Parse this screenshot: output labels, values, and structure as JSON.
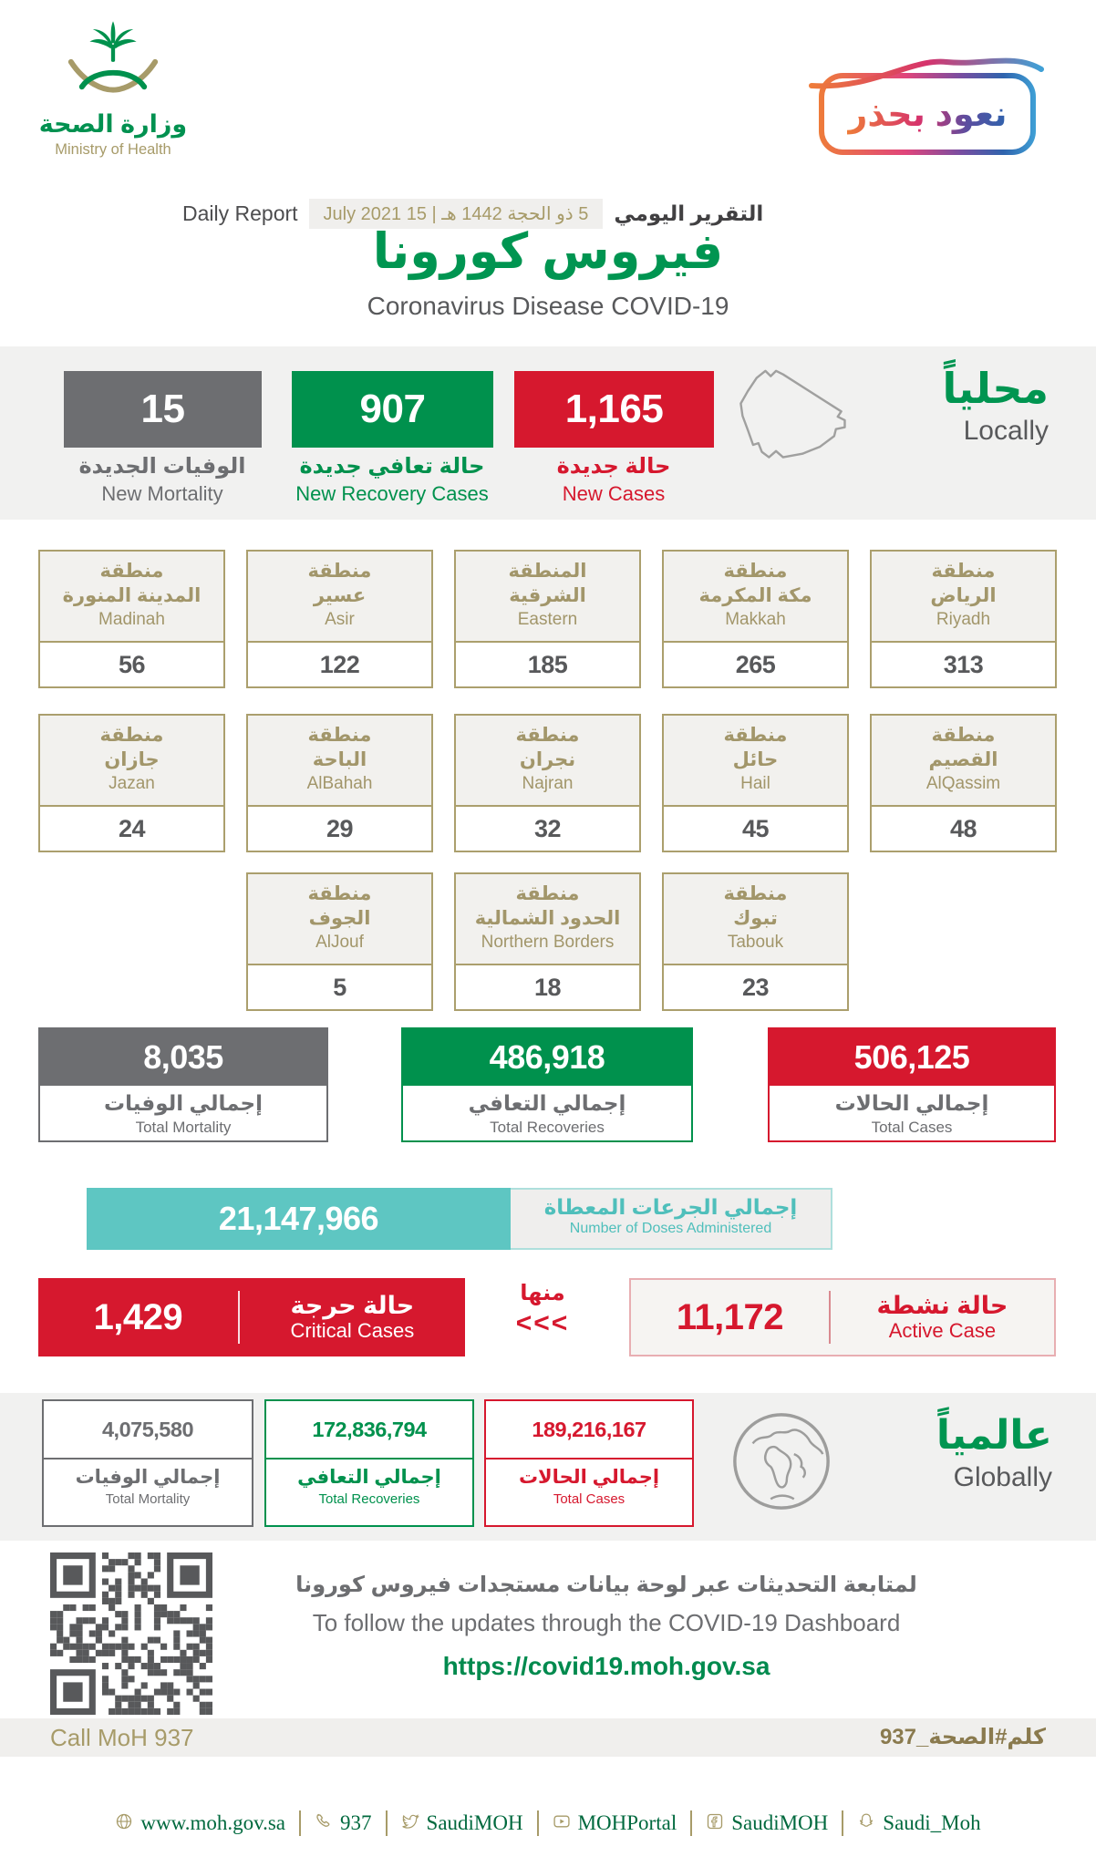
{
  "colors": {
    "green": "#00914d",
    "red": "#d6182e",
    "gray": "#6d6e71",
    "gold": "#a79b69",
    "teal": "#5ec6c2"
  },
  "header": {
    "logo_ar": "وزارة الصحة",
    "logo_en": "Ministry of Health",
    "badge": "نعود بحذر",
    "report_en": "Daily Report",
    "report_date": "5 ذو الحجة 1442 هـ | 15 July 2021",
    "report_ar": "التقرير اليومي",
    "title_ar": "فيروس كورونا",
    "title_en": "Coronavirus Disease COVID-19"
  },
  "local": {
    "heading_ar": "محلياً",
    "heading_en": "Locally",
    "new_mortality": {
      "value": "15",
      "label_ar": "الوفيات الجديدة",
      "label_en": "New Mortality"
    },
    "new_recoveries": {
      "value": "907",
      "label_ar": "حالة تعافي جديدة",
      "label_en": "New Recovery Cases"
    },
    "new_cases": {
      "value": "1,165",
      "label_ar": "حالة جديدة",
      "label_en": "New Cases"
    },
    "regions": [
      {
        "ar1": "منطقة",
        "ar2": "المدينة المنورة",
        "en": "Madinah",
        "value": "56"
      },
      {
        "ar1": "منطقة",
        "ar2": "عسير",
        "en": "Asir",
        "value": "122"
      },
      {
        "ar1": "المنطقة",
        "ar2": "الشرقية",
        "en": "Eastern",
        "value": "185"
      },
      {
        "ar1": "منطقة",
        "ar2": "مكة المكرمة",
        "en": "Makkah",
        "value": "265"
      },
      {
        "ar1": "منطقة",
        "ar2": "الرياض",
        "en": "Riyadh",
        "value": "313"
      },
      {
        "ar1": "منطقة",
        "ar2": "جازان",
        "en": "Jazan",
        "value": "24"
      },
      {
        "ar1": "منطقة",
        "ar2": "الباحة",
        "en": "AlBahah",
        "value": "29"
      },
      {
        "ar1": "منطقة",
        "ar2": "نجران",
        "en": "Najran",
        "value": "32"
      },
      {
        "ar1": "منطقة",
        "ar2": "حائل",
        "en": "Hail",
        "value": "45"
      },
      {
        "ar1": "منطقة",
        "ar2": "القصيم",
        "en": "AlQassim",
        "value": "48"
      },
      {
        "ar1": "منطقة",
        "ar2": "الجوف",
        "en": "AlJouf",
        "value": "5"
      },
      {
        "ar1": "منطقة",
        "ar2": "الحدود الشمالية",
        "en": "Northern Borders",
        "value": "18"
      },
      {
        "ar1": "منطقة",
        "ar2": "تبوك",
        "en": "Tabouk",
        "value": "23"
      }
    ],
    "total_mortality": {
      "value": "8,035",
      "label_ar": "إجمالي الوفيات",
      "label_en": "Total Mortality"
    },
    "total_recoveries": {
      "value": "486,918",
      "label_ar": "إجمالي التعافي",
      "label_en": "Total Recoveries"
    },
    "total_cases": {
      "value": "506,125",
      "label_ar": "إجمالي الحالات",
      "label_en": "Total Cases"
    },
    "doses": {
      "value": "21,147,966",
      "label_ar": "إجمالي الجرعات المعطاة",
      "label_en": "Number of Doses Administered"
    },
    "critical": {
      "value": "1,429",
      "label_ar": "حالة حرجة",
      "label_en": "Critical Cases"
    },
    "of_which": "منها",
    "chevrons": "<<<",
    "active": {
      "value": "11,172",
      "label_ar": "حالة نشطة",
      "label_en": "Active Case"
    }
  },
  "global": {
    "heading_ar": "عالمياً",
    "heading_en": "Globally",
    "total_mortality": {
      "value": "4,075,580",
      "label_ar": "إجمالي الوفيات",
      "label_en": "Total Mortality"
    },
    "total_recoveries": {
      "value": "172,836,794",
      "label_ar": "إجمالي التعافي",
      "label_en": "Total Recoveries"
    },
    "total_cases": {
      "value": "189,216,167",
      "label_ar": "إجمالي الحالات",
      "label_en": "Total Cases"
    }
  },
  "dashboard": {
    "line_ar": "لمتابعة التحديثات عبر لوحة بيانات مستجدات فيروس كورونا",
    "line_en": "To follow the updates through the COVID-19 Dashboard",
    "url": "https://covid19.moh.gov.sa"
  },
  "contact": {
    "call_en": "Call MoH 937",
    "call_ar": "كلم#الصحة_937"
  },
  "footer": {
    "items": [
      {
        "icon": "website-globe-icon",
        "label": "www.moh.gov.sa"
      },
      {
        "icon": "phone-icon",
        "label": "937"
      },
      {
        "icon": "twitter-icon",
        "label": "SaudiMOH"
      },
      {
        "icon": "youtube-icon",
        "label": "MOHPortal"
      },
      {
        "icon": "facebook-icon",
        "label": "SaudiMOH"
      },
      {
        "icon": "snapchat-icon",
        "label": "Saudi_Moh"
      }
    ]
  }
}
